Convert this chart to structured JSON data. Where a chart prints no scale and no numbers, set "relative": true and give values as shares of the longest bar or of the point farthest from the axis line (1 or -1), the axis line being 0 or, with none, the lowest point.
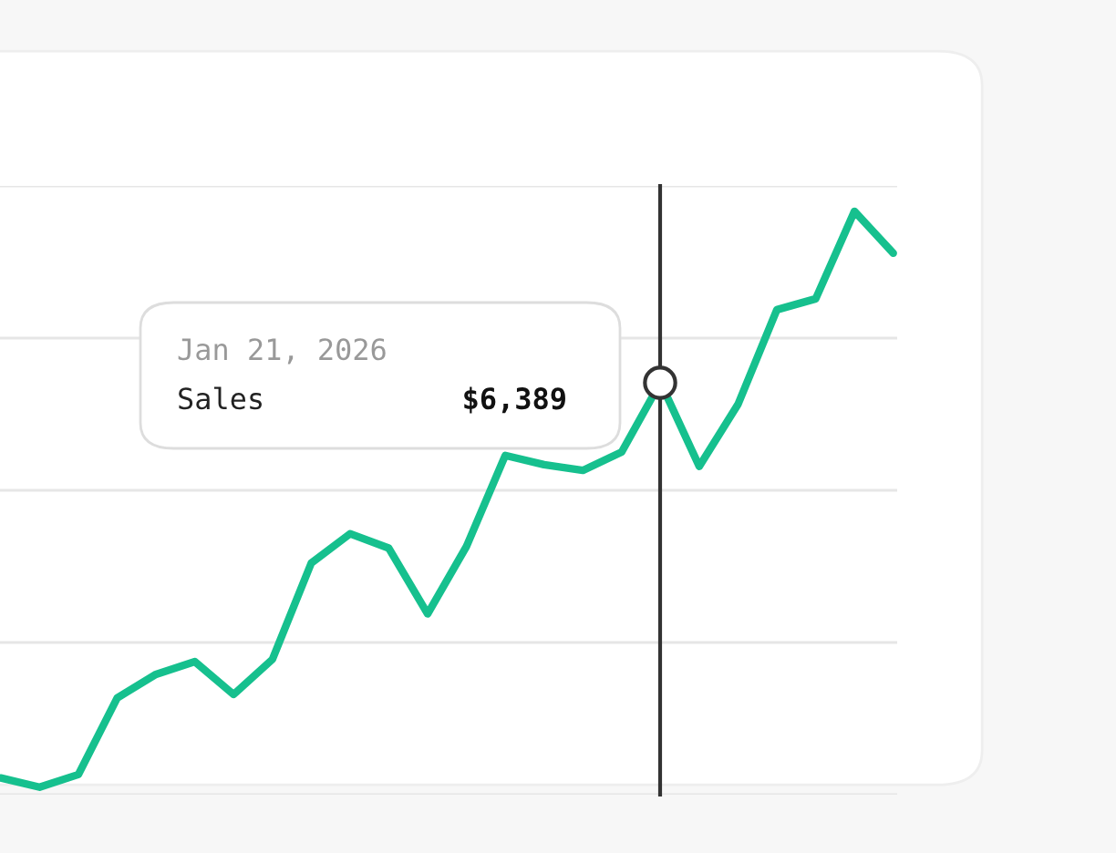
{
  "chart_data": {
    "type": "line",
    "relative": true,
    "categories": [
      null,
      null,
      null,
      null,
      null,
      null,
      null,
      null,
      null,
      null,
      null,
      null,
      null,
      null,
      null,
      null,
      null,
      null,
      null,
      null,
      null,
      null,
      null,
      null
    ],
    "series": [
      {
        "color": "#16c08e",
        "values": [
          0.016,
          0,
          0.022,
          0.155,
          0.196,
          0.218,
          0.161,
          0.222,
          0.389,
          0.44,
          0.415,
          0.301,
          0.418,
          0.576,
          0.56,
          0.55,
          0.582,
          0.703,
          0.557,
          0.665,
          0.829,
          0.848,
          1,
          0.927
        ]
      }
    ],
    "annotations": [
      "Jan 21, 2026",
      "Sales",
      "$6,389"
    ],
    "grid": "y",
    "legend": false,
    "marker": "none",
    "line_style": "solid"
  }
}
